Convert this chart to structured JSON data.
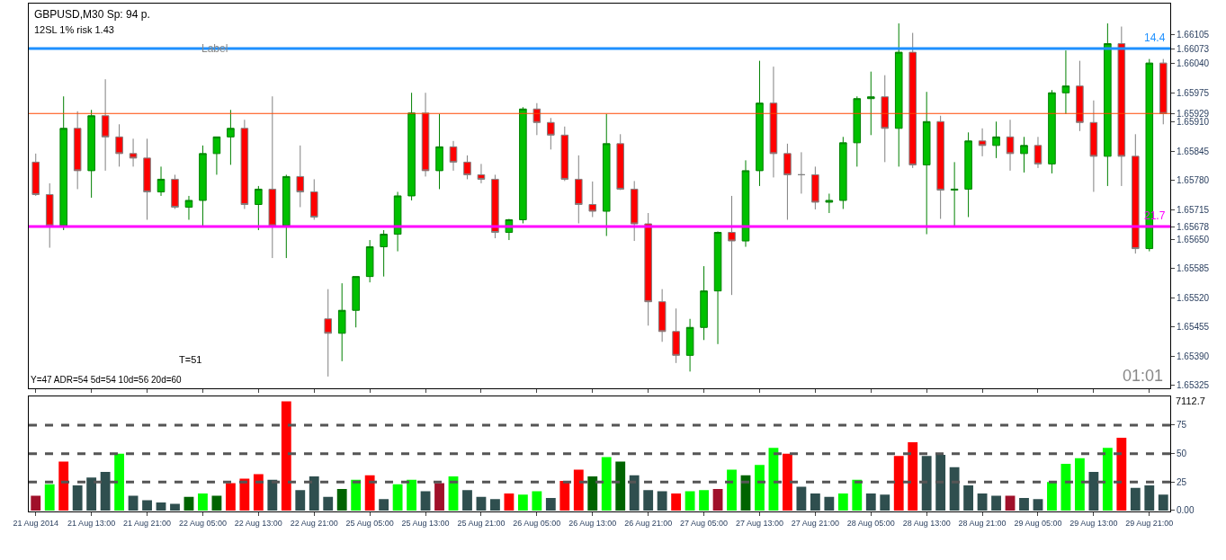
{
  "chart_data": [
    {
      "type": "candlestick",
      "title": "GBPUSD,M30 Sp: 94 p.",
      "subtitle": "12SL 1% risk 1.43",
      "annotations": [
        "Label",
        "T=51",
        "Y=47 ADR=54 5d=54 10d=56 20d=60",
        "01:01",
        {
          "text": "14.4",
          "y": 1.66073
        },
        {
          "text": "21.7",
          "y": 1.65678
        }
      ],
      "categories": [
        "21 Aug 2014",
        null,
        null,
        null,
        "21 Aug 13:00",
        null,
        null,
        null,
        "21 Aug 21:00",
        null,
        null,
        null,
        "22 Aug 05:00",
        null,
        null,
        null,
        "22 Aug 13:00",
        null,
        null,
        null,
        "22 Aug 21:00",
        null,
        null,
        null,
        "25 Aug 05:00",
        null,
        null,
        null,
        "25 Aug 13:00",
        null,
        null,
        null,
        "25 Aug 21:00",
        null,
        null,
        null,
        "26 Aug 05:00",
        null,
        null,
        null,
        "26 Aug 13:00",
        null,
        null,
        null,
        "26 Aug 21:00",
        null,
        null,
        null,
        "27 Aug 05:00",
        null,
        null,
        null,
        "27 Aug 13:00",
        null,
        null,
        null,
        "27 Aug 21:00",
        null,
        null,
        null,
        "28 Aug 05:00",
        null,
        null,
        null,
        "28 Aug 13:00",
        null,
        null,
        null,
        "28 Aug 21:00",
        null,
        null,
        null,
        "29 Aug 05:00",
        null,
        null,
        null,
        "29 Aug 13:00",
        null,
        null,
        null,
        "29 Aug 21:00",
        null
      ],
      "ohlc": [
        [
          1.65821,
          1.6584,
          1.65746,
          1.65749
        ],
        [
          1.65749,
          1.65774,
          1.65631,
          1.6568
        ],
        [
          1.6568,
          1.65967,
          1.6567,
          1.65896
        ],
        [
          1.65896,
          1.65934,
          1.65761,
          1.65802
        ],
        [
          1.65802,
          1.65937,
          1.65742,
          1.65924
        ],
        [
          1.65924,
          1.66005,
          1.65802,
          1.65877
        ],
        [
          1.65877,
          1.65905,
          1.65811,
          1.6584
        ],
        [
          1.6584,
          1.65873,
          1.65811,
          1.6583
        ],
        [
          1.6583,
          1.65873,
          1.65693,
          1.65755
        ],
        [
          1.65755,
          1.65811,
          1.65746,
          1.65783
        ],
        [
          1.65783,
          1.65793,
          1.65717,
          1.65721
        ],
        [
          1.65721,
          1.65746,
          1.65693,
          1.65736
        ],
        [
          1.65736,
          1.65858,
          1.65676,
          1.6584
        ],
        [
          1.6584,
          1.65877,
          1.65793,
          1.65877
        ],
        [
          1.65877,
          1.65937,
          1.65815,
          1.65896
        ],
        [
          1.65896,
          1.65915,
          1.65717,
          1.65727
        ],
        [
          1.65727,
          1.65768,
          1.6567,
          1.65761
        ],
        [
          1.65761,
          1.65967,
          1.65608,
          1.6568
        ],
        [
          1.6568,
          1.65793,
          1.65608,
          1.65789
        ],
        [
          1.65789,
          1.65858,
          1.65721,
          1.65755
        ],
        [
          1.65755,
          1.65783,
          1.65693,
          1.65699
        ],
        [
          1.65473,
          1.65539,
          1.65345,
          1.65441
        ],
        [
          1.65441,
          1.65552,
          1.65379,
          1.65492
        ],
        [
          1.65492,
          1.65567,
          1.65454,
          1.65567
        ],
        [
          1.65567,
          1.65648,
          1.65554,
          1.65633
        ],
        [
          1.65633,
          1.6567,
          1.65567,
          1.65661
        ],
        [
          1.65661,
          1.65755,
          1.65623,
          1.65746
        ],
        [
          1.65746,
          1.65975,
          1.65736,
          1.6593
        ],
        [
          1.6593,
          1.65975,
          1.65789,
          1.65802
        ],
        [
          1.65802,
          1.65928,
          1.65761,
          1.65855
        ],
        [
          1.65855,
          1.65868,
          1.65802,
          1.65821
        ],
        [
          1.65821,
          1.65836,
          1.65783,
          1.65793
        ],
        [
          1.65793,
          1.65817,
          1.65774,
          1.65783
        ],
        [
          1.65783,
          1.65793,
          1.65652,
          1.65665
        ],
        [
          1.65665,
          1.65695,
          1.65648,
          1.65693
        ],
        [
          1.65693,
          1.65943,
          1.65685,
          1.65939
        ],
        [
          1.65939,
          1.65952,
          1.65881,
          1.65909
        ],
        [
          1.65909,
          1.65919,
          1.65849,
          1.65881
        ],
        [
          1.65881,
          1.659,
          1.65779,
          1.65783
        ],
        [
          1.65783,
          1.65836,
          1.65685,
          1.65727
        ],
        [
          1.65727,
          1.65778,
          1.65699,
          1.65712
        ],
        [
          1.65712,
          1.65928,
          1.65657,
          1.65862
        ],
        [
          1.65862,
          1.65883,
          1.65759,
          1.65761
        ],
        [
          1.65761,
          1.65779,
          1.65646,
          1.65684
        ],
        [
          1.65684,
          1.65708,
          1.65458,
          1.65511
        ],
        [
          1.65511,
          1.65539,
          1.65422,
          1.65445
        ],
        [
          1.65445,
          1.65496,
          1.65375,
          1.65392
        ],
        [
          1.65392,
          1.65473,
          1.65356,
          1.65454
        ],
        [
          1.65454,
          1.6559,
          1.65426,
          1.65535
        ],
        [
          1.65535,
          1.65667,
          1.65417,
          1.65665
        ],
        [
          1.65665,
          1.65746,
          1.65526,
          1.65646
        ],
        [
          1.65646,
          1.65825,
          1.65633,
          1.65802
        ],
        [
          1.65802,
          1.66046,
          1.65768,
          1.65952
        ],
        [
          1.65952,
          1.66033,
          1.65787,
          1.6584
        ],
        [
          1.6584,
          1.65862,
          1.65693,
          1.65793
        ],
        [
          1.65793,
          1.65843,
          1.65751,
          1.65793
        ],
        [
          1.65793,
          1.65811,
          1.65716,
          1.65732
        ],
        [
          1.65732,
          1.65751,
          1.65708,
          1.65736
        ],
        [
          1.65736,
          1.65877,
          1.65717,
          1.65864
        ],
        [
          1.65864,
          1.65967,
          1.65811,
          1.65962
        ],
        [
          1.65962,
          1.66022,
          1.65881,
          1.65966
        ],
        [
          1.65966,
          1.66014,
          1.65821,
          1.65896
        ],
        [
          1.65896,
          1.66129,
          1.65811,
          1.66065
        ],
        [
          1.66065,
          1.66108,
          1.65808,
          1.65815
        ],
        [
          1.65815,
          1.65977,
          1.65661,
          1.65911
        ],
        [
          1.65911,
          1.65924,
          1.65695,
          1.65759
        ],
        [
          1.65759,
          1.65821,
          1.6568,
          1.65761
        ],
        [
          1.65761,
          1.65887,
          1.65699,
          1.65868
        ],
        [
          1.65868,
          1.65896,
          1.65834,
          1.65858
        ],
        [
          1.65858,
          1.65911,
          1.6583,
          1.65877
        ],
        [
          1.65877,
          1.65915,
          1.65802,
          1.6584
        ],
        [
          1.6584,
          1.65877,
          1.65798,
          1.65858
        ],
        [
          1.65858,
          1.65877,
          1.65808,
          1.65817
        ],
        [
          1.65817,
          1.65981,
          1.65796,
          1.65975
        ],
        [
          1.65975,
          1.66069,
          1.65928,
          1.6599
        ],
        [
          1.6599,
          1.66046,
          1.6589,
          1.65909
        ],
        [
          1.65909,
          1.65958,
          1.65755,
          1.65834
        ],
        [
          1.65834,
          1.66129,
          1.65768,
          1.66084
        ],
        [
          1.66084,
          1.66122,
          1.65768,
          1.65834
        ],
        [
          1.65834,
          1.65883,
          1.65618,
          1.65629
        ],
        [
          1.65629,
          1.6605,
          1.65623,
          1.66041
        ],
        [
          1.66041,
          1.6605,
          1.65905,
          1.65929
        ]
      ],
      "ylim": [
        1.65318,
        1.66173
      ],
      "yticks": [
        1.66105,
        1.66073,
        {
          "value": 1.6604,
          "label": "1.66040"
        },
        1.65975,
        1.65929,
        {
          "value": 1.6591,
          "label": "1.65910"
        },
        1.65845,
        {
          "value": 1.6578,
          "label": "1.65780"
        },
        1.65715,
        1.65678,
        {
          "value": 1.6565,
          "label": "1.65650"
        },
        1.65585,
        {
          "value": 1.6552,
          "label": "1.65520"
        },
        1.65455,
        {
          "value": 1.6539,
          "label": "1.65390"
        },
        1.65325
      ],
      "tick_labels": "y",
      "ref_lines": [
        {
          "axis": "y",
          "value": 1.66073,
          "color": "#1e90ff"
        },
        {
          "axis": "y",
          "value": 1.65929,
          "color": "#ff4500"
        },
        {
          "axis": "y",
          "value": 1.65678,
          "color": "#ff00ff"
        }
      ]
    },
    {
      "type": "bar",
      "categories": [
        "21 Aug 2014",
        null,
        null,
        null,
        "21 Aug 13:00",
        null,
        null,
        null,
        "21 Aug 21:00",
        null,
        null,
        null,
        "22 Aug 05:00",
        null,
        null,
        null,
        "22 Aug 13:00",
        null,
        null,
        null,
        "22 Aug 21:00",
        null,
        null,
        null,
        "25 Aug 05:00",
        null,
        null,
        null,
        "25 Aug 13:00",
        null,
        null,
        null,
        "25 Aug 21:00",
        null,
        null,
        null,
        "26 Aug 05:00",
        null,
        null,
        null,
        "26 Aug 13:00",
        null,
        null,
        null,
        "26 Aug 21:00",
        null,
        null,
        null,
        "27 Aug 05:00",
        null,
        null,
        null,
        "27 Aug 13:00",
        null,
        null,
        null,
        "27 Aug 21:00",
        null,
        null,
        null,
        "28 Aug 05:00",
        null,
        null,
        null,
        "28 Aug 13:00",
        null,
        null,
        null,
        "28 Aug 21:00",
        null,
        null,
        null,
        "29 Aug 05:00",
        null,
        null,
        null,
        "29 Aug 13:00",
        null,
        null,
        null,
        "29 Aug 21:00",
        null
      ],
      "values": [
        13,
        23,
        43,
        22,
        29,
        34,
        50,
        13,
        9,
        7,
        6,
        12,
        15,
        13,
        24,
        28,
        32,
        27,
        96,
        18,
        30,
        12,
        19,
        27,
        31,
        10,
        23,
        27,
        17,
        24,
        30,
        18,
        12,
        10,
        15,
        14,
        17,
        11,
        26,
        36,
        30,
        47,
        43,
        31,
        18,
        17,
        15,
        17,
        18,
        19,
        36,
        31,
        40,
        55,
        50,
        21,
        15,
        12,
        15,
        27,
        15,
        14,
        48,
        60,
        48,
        49,
        38,
        22,
        15,
        13,
        13,
        11,
        10,
        25,
        41,
        46,
        34,
        55,
        64,
        20,
        22,
        14
      ],
      "colors": [
        "#a0102a",
        "#00ff00",
        "#ff0000",
        "#2f4f4f",
        "#2f4f4f",
        "#2f4f4f",
        "#00ff00",
        "#2f4f4f",
        "#2f4f4f",
        "#2f4f4f",
        "#2f4f4f",
        "#006400",
        "#00ff00",
        "#006400",
        "#ff0000",
        "#ff0000",
        "#ff0000",
        "#2f4f4f",
        "#ff0000",
        "#2f4f4f",
        "#2f4f4f",
        "#2f4f4f",
        "#006400",
        "#00ff00",
        "#ff0000",
        "#2f4f4f",
        "#00ff00",
        "#00ff00",
        "#2f4f4f",
        "#a0102a",
        "#00ff00",
        "#2f4f4f",
        "#2f4f4f",
        "#2f4f4f",
        "#ff0000",
        "#00ff00",
        "#00ff00",
        "#2f4f4f",
        "#ff0000",
        "#ff0000",
        "#006400",
        "#00ff00",
        "#006400",
        "#2f4f4f",
        "#2f4f4f",
        "#2f4f4f",
        "#ff0000",
        "#00ff00",
        "#00ff00",
        "#a0102a",
        "#00ff00",
        "#006400",
        "#00ff00",
        "#00ff00",
        "#ff0000",
        "#2f4f4f",
        "#2f4f4f",
        "#2f4f4f",
        "#00ff00",
        "#00ff00",
        "#2f4f4f",
        "#2f4f4f",
        "#ff0000",
        "#ff0000",
        "#2f4f4f",
        "#2f4f4f",
        "#2f4f4f",
        "#2f4f4f",
        "#2f4f4f",
        "#2f4f4f",
        "#a0102a",
        "#2f4f4f",
        "#2f4f4f",
        "#00ff00",
        "#00ff00",
        "#00ff00",
        "#2f4f4f",
        "#00ff00",
        "#ff0000",
        "#2f4f4f",
        "#2f4f4f",
        "#2f4f4f"
      ],
      "ylim": [
        -1,
        100
      ],
      "annotations": [
        "7112.7"
      ],
      "yticks": [
        {
          "value": 0,
          "label": "0.00"
        },
        25,
        50,
        75
      ],
      "ref_lines": [
        {
          "axis": "y",
          "value": 25,
          "color": "#555555",
          "line_style": "dashed"
        },
        {
          "axis": "y",
          "value": 50,
          "color": "#555555",
          "line_style": "dashed"
        },
        {
          "axis": "y",
          "value": 75,
          "color": "#555555",
          "line_style": "dashed"
        }
      ]
    }
  ]
}
